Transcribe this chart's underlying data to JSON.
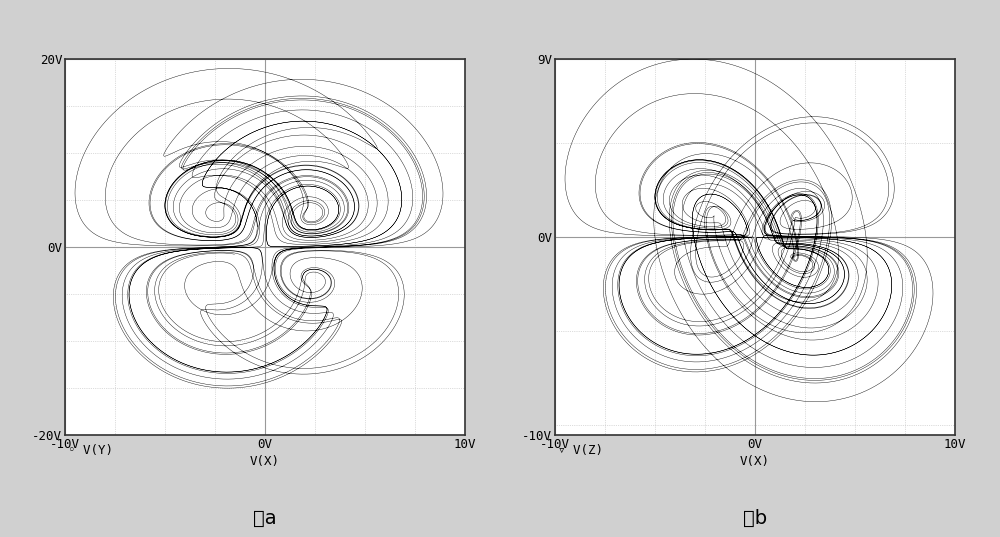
{
  "fig_width": 10.0,
  "fig_height": 5.37,
  "bg_color": "#d0d0d0",
  "plot_bg_color": "#ffffff",
  "grid_major_color": "#999999",
  "grid_minor_color": "#bbbbbb",
  "line_color": "#000000",
  "left_xlabel": "V(X)",
  "left_legend": "◦ V(Y)",
  "left_xlim": [
    -10,
    10
  ],
  "left_ylim": [
    -20,
    20
  ],
  "left_xticks": [
    -10,
    0,
    10
  ],
  "left_xtick_labels": [
    "-10V",
    "0V",
    "10V"
  ],
  "left_yticks": [
    -20,
    0,
    20
  ],
  "left_ytick_labels": [
    "-20V",
    "0V",
    "20V"
  ],
  "right_xlabel": "V(X)",
  "right_legend": "▿ V(Z)",
  "right_xlim": [
    -10,
    10
  ],
  "right_ylim": [
    -10,
    9
  ],
  "right_xticks": [
    -10,
    0,
    10
  ],
  "right_xtick_labels": [
    "-10V",
    "0V",
    "10V"
  ],
  "right_yticks": [
    -10,
    0,
    9
  ],
  "right_ytick_labels": [
    "-10V",
    "0V",
    "9V"
  ],
  "caption_a": "图a",
  "caption_b": "图b",
  "caption_fontsize": 14,
  "axis_fontsize": 9,
  "label_fontsize": 9,
  "lw": 0.3
}
